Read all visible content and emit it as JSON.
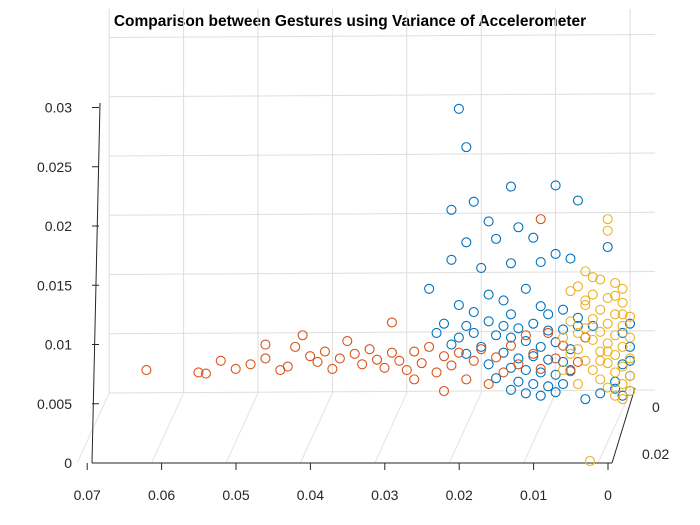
{
  "chart_data": {
    "type": "scatter",
    "title": "Comparison between Gestures using Variance of Accelerometer",
    "xlabel": "",
    "ylabel": "",
    "zlabel": "",
    "axes": {
      "x": {
        "range": [
          0,
          0.07
        ],
        "ticks": [
          0.07,
          0.06,
          0.05,
          0.04,
          0.03,
          0.02,
          0.01,
          0
        ],
        "tick_labels": [
          "0.07",
          "0.06",
          "0.05",
          "0.04",
          "0.03",
          "0.02",
          "0.01",
          "0"
        ]
      },
      "depth": {
        "range": [
          0,
          0.02
        ],
        "ticks": [
          0,
          0.02
        ],
        "tick_labels": [
          "0",
          "0.02"
        ]
      },
      "z": {
        "range": [
          0,
          0.03
        ],
        "ticks": [
          0,
          0.005,
          0.01,
          0.015,
          0.02,
          0.025,
          0.03
        ],
        "tick_labels": [
          "0",
          "0.005",
          "0.01",
          "0.015",
          "0.02",
          "0.025",
          "0.03"
        ]
      }
    },
    "grid": true,
    "legend": "none",
    "marker": "open-circle",
    "series": [
      {
        "color": "#0072BD",
        "points": [
          [
            0.023,
            0.0,
            0.0305
          ],
          [
            0.022,
            0.0,
            0.0272
          ],
          [
            0.016,
            0.0,
            0.0238
          ],
          [
            0.01,
            0.0,
            0.0239
          ],
          [
            0.021,
            0.0,
            0.0225
          ],
          [
            0.024,
            0.0,
            0.0218
          ],
          [
            0.007,
            0.0,
            0.0226
          ],
          [
            0.003,
            0.0,
            0.0186
          ],
          [
            0.019,
            0.0,
            0.0208
          ],
          [
            0.015,
            0.0,
            0.0203
          ],
          [
            0.013,
            0.0,
            0.0194
          ],
          [
            0.018,
            0.0,
            0.0193
          ],
          [
            0.022,
            0.0,
            0.019
          ],
          [
            0.024,
            0.0,
            0.0175
          ],
          [
            0.02,
            0.0,
            0.0168
          ],
          [
            0.016,
            0.0,
            0.0172
          ],
          [
            0.01,
            0.0,
            0.018
          ],
          [
            0.012,
            0.0,
            0.0173
          ],
          [
            0.008,
            0.0,
            0.0176
          ],
          [
            0.027,
            0.0,
            0.015
          ],
          [
            0.019,
            0.0,
            0.0145
          ],
          [
            0.017,
            0.0,
            0.014
          ],
          [
            0.014,
            0.0,
            0.015
          ],
          [
            0.021,
            0.0,
            0.013
          ],
          [
            0.023,
            0.0,
            0.0136
          ],
          [
            0.016,
            0.0,
            0.0128
          ],
          [
            0.012,
            0.0,
            0.0135
          ],
          [
            0.025,
            0.0,
            0.012
          ],
          [
            0.022,
            0.0,
            0.0118
          ],
          [
            0.019,
            0.0,
            0.0122
          ],
          [
            0.017,
            0.0,
            0.0118
          ],
          [
            0.015,
            0.0,
            0.0116
          ],
          [
            0.013,
            0.0,
            0.012
          ],
          [
            0.011,
            0.0,
            0.0114
          ],
          [
            0.009,
            0.0,
            0.0115
          ],
          [
            0.007,
            0.0,
            0.0118
          ],
          [
            0.018,
            0.0,
            0.011
          ],
          [
            0.016,
            0.0,
            0.0108
          ],
          [
            0.014,
            0.0,
            0.0105
          ],
          [
            0.012,
            0.0,
            0.01
          ],
          [
            0.01,
            0.0,
            0.0104
          ],
          [
            0.008,
            0.0,
            0.0098
          ],
          [
            0.02,
            0.0,
            0.01
          ],
          [
            0.022,
            0.0,
            0.0094
          ],
          [
            0.017,
            0.0,
            0.0095
          ],
          [
            0.015,
            0.0,
            0.009
          ],
          [
            0.013,
            0.0,
            0.0092
          ],
          [
            0.011,
            0.0,
            0.0089
          ],
          [
            0.009,
            0.0,
            0.0087
          ],
          [
            0.019,
            0.0,
            0.0085
          ],
          [
            0.016,
            0.0,
            0.0082
          ],
          [
            0.014,
            0.0,
            0.008
          ],
          [
            0.012,
            0.0,
            0.0078
          ],
          [
            0.01,
            0.0,
            0.0076
          ],
          [
            0.008,
            0.0,
            0.008
          ],
          [
            0.018,
            0.0,
            0.0073
          ],
          [
            0.015,
            0.0,
            0.007
          ],
          [
            0.013,
            0.0,
            0.0068
          ],
          [
            0.011,
            0.0,
            0.0066
          ],
          [
            0.009,
            0.0,
            0.0068
          ],
          [
            0.016,
            0.0,
            0.0063
          ],
          [
            0.014,
            0.0,
            0.006
          ],
          [
            0.012,
            0.0,
            0.0058
          ],
          [
            0.01,
            0.0,
            0.0061
          ],
          [
            0.006,
            0.0,
            0.0055
          ],
          [
            0.004,
            0.0,
            0.006
          ],
          [
            0.002,
            0.0,
            0.007
          ],
          [
            0.001,
            0.0,
            0.0085
          ],
          [
            0.0,
            0.0,
            0.01
          ],
          [
            0.0,
            0.0,
            0.0088
          ],
          [
            0.0,
            0.0,
            0.0075
          ],
          [
            0.0,
            0.0,
            0.0062
          ],
          [
            0.001,
            0.0,
            0.0058
          ],
          [
            0.002,
            0.0,
            0.0064
          ],
          [
            0.001,
            0.0,
            0.0112
          ],
          [
            0.0,
            0.0,
            0.012
          ],
          [
            0.021,
            0.0,
            0.0112
          ],
          [
            0.023,
            0.0,
            0.0108
          ],
          [
            0.024,
            0.0,
            0.0102
          ],
          [
            0.026,
            0.0,
            0.0112
          ],
          [
            0.011,
            0.0,
            0.0128
          ],
          [
            0.009,
            0.0,
            0.0132
          ],
          [
            0.007,
            0.0,
            0.0125
          ],
          [
            0.005,
            0.0,
            0.0118
          ]
        ]
      },
      {
        "color": "#D95319",
        "points": [
          [
            0.065,
            0.0,
            0.008
          ],
          [
            0.058,
            0.0,
            0.0078
          ],
          [
            0.057,
            0.0,
            0.0077
          ],
          [
            0.055,
            0.0,
            0.0088
          ],
          [
            0.053,
            0.0,
            0.0081
          ],
          [
            0.051,
            0.0,
            0.0085
          ],
          [
            0.049,
            0.0,
            0.009
          ],
          [
            0.047,
            0.0,
            0.008
          ],
          [
            0.046,
            0.0,
            0.0083
          ],
          [
            0.045,
            0.0,
            0.01
          ],
          [
            0.043,
            0.0,
            0.0092
          ],
          [
            0.042,
            0.0,
            0.0087
          ],
          [
            0.041,
            0.0,
            0.0096
          ],
          [
            0.04,
            0.0,
            0.0081
          ],
          [
            0.039,
            0.0,
            0.009
          ],
          [
            0.038,
            0.0,
            0.0105
          ],
          [
            0.037,
            0.0,
            0.0094
          ],
          [
            0.036,
            0.0,
            0.0085
          ],
          [
            0.035,
            0.0,
            0.0098
          ],
          [
            0.034,
            0.0,
            0.0089
          ],
          [
            0.033,
            0.0,
            0.0082
          ],
          [
            0.032,
            0.0,
            0.0095
          ],
          [
            0.031,
            0.0,
            0.0088
          ],
          [
            0.03,
            0.0,
            0.008
          ],
          [
            0.029,
            0.0,
            0.0096
          ],
          [
            0.028,
            0.0,
            0.0086
          ],
          [
            0.027,
            0.0,
            0.01
          ],
          [
            0.026,
            0.0,
            0.0078
          ],
          [
            0.025,
            0.0,
            0.0092
          ],
          [
            0.024,
            0.0,
            0.0084
          ],
          [
            0.023,
            0.0,
            0.0095
          ],
          [
            0.022,
            0.0,
            0.0072
          ],
          [
            0.021,
            0.0,
            0.0088
          ],
          [
            0.02,
            0.0,
            0.0098
          ],
          [
            0.019,
            0.0,
            0.0068
          ],
          [
            0.018,
            0.0,
            0.0091
          ],
          [
            0.017,
            0.0,
            0.0078
          ],
          [
            0.016,
            0.0,
            0.0101
          ],
          [
            0.015,
            0.0,
            0.0085
          ],
          [
            0.014,
            0.0,
            0.011
          ],
          [
            0.013,
            0.0,
            0.0094
          ],
          [
            0.012,
            0.0,
            0.0081
          ],
          [
            0.011,
            0.0,
            0.0112
          ],
          [
            0.01,
            0.0,
            0.009
          ],
          [
            0.009,
            0.0,
            0.0101
          ],
          [
            0.008,
            0.0,
            0.0079
          ],
          [
            0.007,
            0.0,
            0.0087
          ],
          [
            0.006,
            0.0,
            0.0108
          ],
          [
            0.012,
            0.0,
            0.021
          ],
          [
            0.032,
            0.0,
            0.0121
          ],
          [
            0.044,
            0.0,
            0.011
          ],
          [
            0.049,
            0.0,
            0.0102
          ],
          [
            0.025,
            0.0,
            0.0062
          ],
          [
            0.029,
            0.0,
            0.0072
          ]
        ]
      },
      {
        "color": "#EDB120",
        "points": [
          [
            0.003,
            0.0,
            0.02
          ],
          [
            0.006,
            0.0,
            0.0165
          ],
          [
            0.005,
            0.0,
            0.016
          ],
          [
            0.004,
            0.0,
            0.0158
          ],
          [
            0.002,
            0.0,
            0.0155
          ],
          [
            0.001,
            0.0,
            0.015
          ],
          [
            0.007,
            0.0,
            0.0152
          ],
          [
            0.005,
            0.0,
            0.0145
          ],
          [
            0.003,
            0.0,
            0.0142
          ],
          [
            0.001,
            0.0,
            0.0138
          ],
          [
            0.006,
            0.0,
            0.0136
          ],
          [
            0.004,
            0.0,
            0.0132
          ],
          [
            0.002,
            0.0,
            0.0128
          ],
          [
            0.0,
            0.0,
            0.0126
          ],
          [
            0.005,
            0.0,
            0.0124
          ],
          [
            0.003,
            0.0,
            0.012
          ],
          [
            0.001,
            0.0,
            0.0118
          ],
          [
            0.006,
            0.0,
            0.0116
          ],
          [
            0.004,
            0.0,
            0.0113
          ],
          [
            0.002,
            0.0,
            0.011
          ],
          [
            0.0,
            0.0,
            0.0108
          ],
          [
            0.005,
            0.0,
            0.0106
          ],
          [
            0.003,
            0.0,
            0.0103
          ],
          [
            0.001,
            0.0,
            0.01
          ],
          [
            0.007,
            0.0,
            0.0098
          ],
          [
            0.004,
            0.0,
            0.0096
          ],
          [
            0.002,
            0.0,
            0.0093
          ],
          [
            0.0,
            0.0,
            0.009
          ],
          [
            0.006,
            0.0,
            0.0088
          ],
          [
            0.003,
            0.0,
            0.0086
          ],
          [
            0.001,
            0.0,
            0.0083
          ],
          [
            0.005,
            0.0,
            0.008
          ],
          [
            0.002,
            0.0,
            0.0078
          ],
          [
            0.0,
            0.0,
            0.0075
          ],
          [
            0.004,
            0.0,
            0.0072
          ],
          [
            0.001,
            0.0,
            0.0068
          ],
          [
            0.003,
            0.0,
            0.0065
          ],
          [
            0.0,
            0.0,
            0.0062
          ],
          [
            0.002,
            0.0,
            0.0058
          ],
          [
            0.001,
            0.0,
            0.0055
          ],
          [
            0.008,
            0.0,
            0.0122
          ],
          [
            0.009,
            0.0,
            0.0108
          ],
          [
            0.008,
            0.0,
            0.0094
          ],
          [
            0.009,
            0.0,
            0.008
          ],
          [
            0.007,
            0.0,
            0.0068
          ],
          [
            0.006,
            0.0,
            0.014
          ],
          [
            0.008,
            0.0,
            0.0148
          ],
          [
            0.007,
            0.0,
            0.0112
          ],
          [
            0.002,
            0.0,
            0.0144
          ],
          [
            0.003,
            0.0,
            0.0096
          ],
          [
            0.001,
            0.0,
            0.0128
          ],
          [
            0.004,
            0.0,
            0.0088
          ],
          [
            0.003,
            0.0,
            0.021
          ],
          [
            0.002,
            0.02,
            0.0
          ]
        ]
      }
    ]
  }
}
